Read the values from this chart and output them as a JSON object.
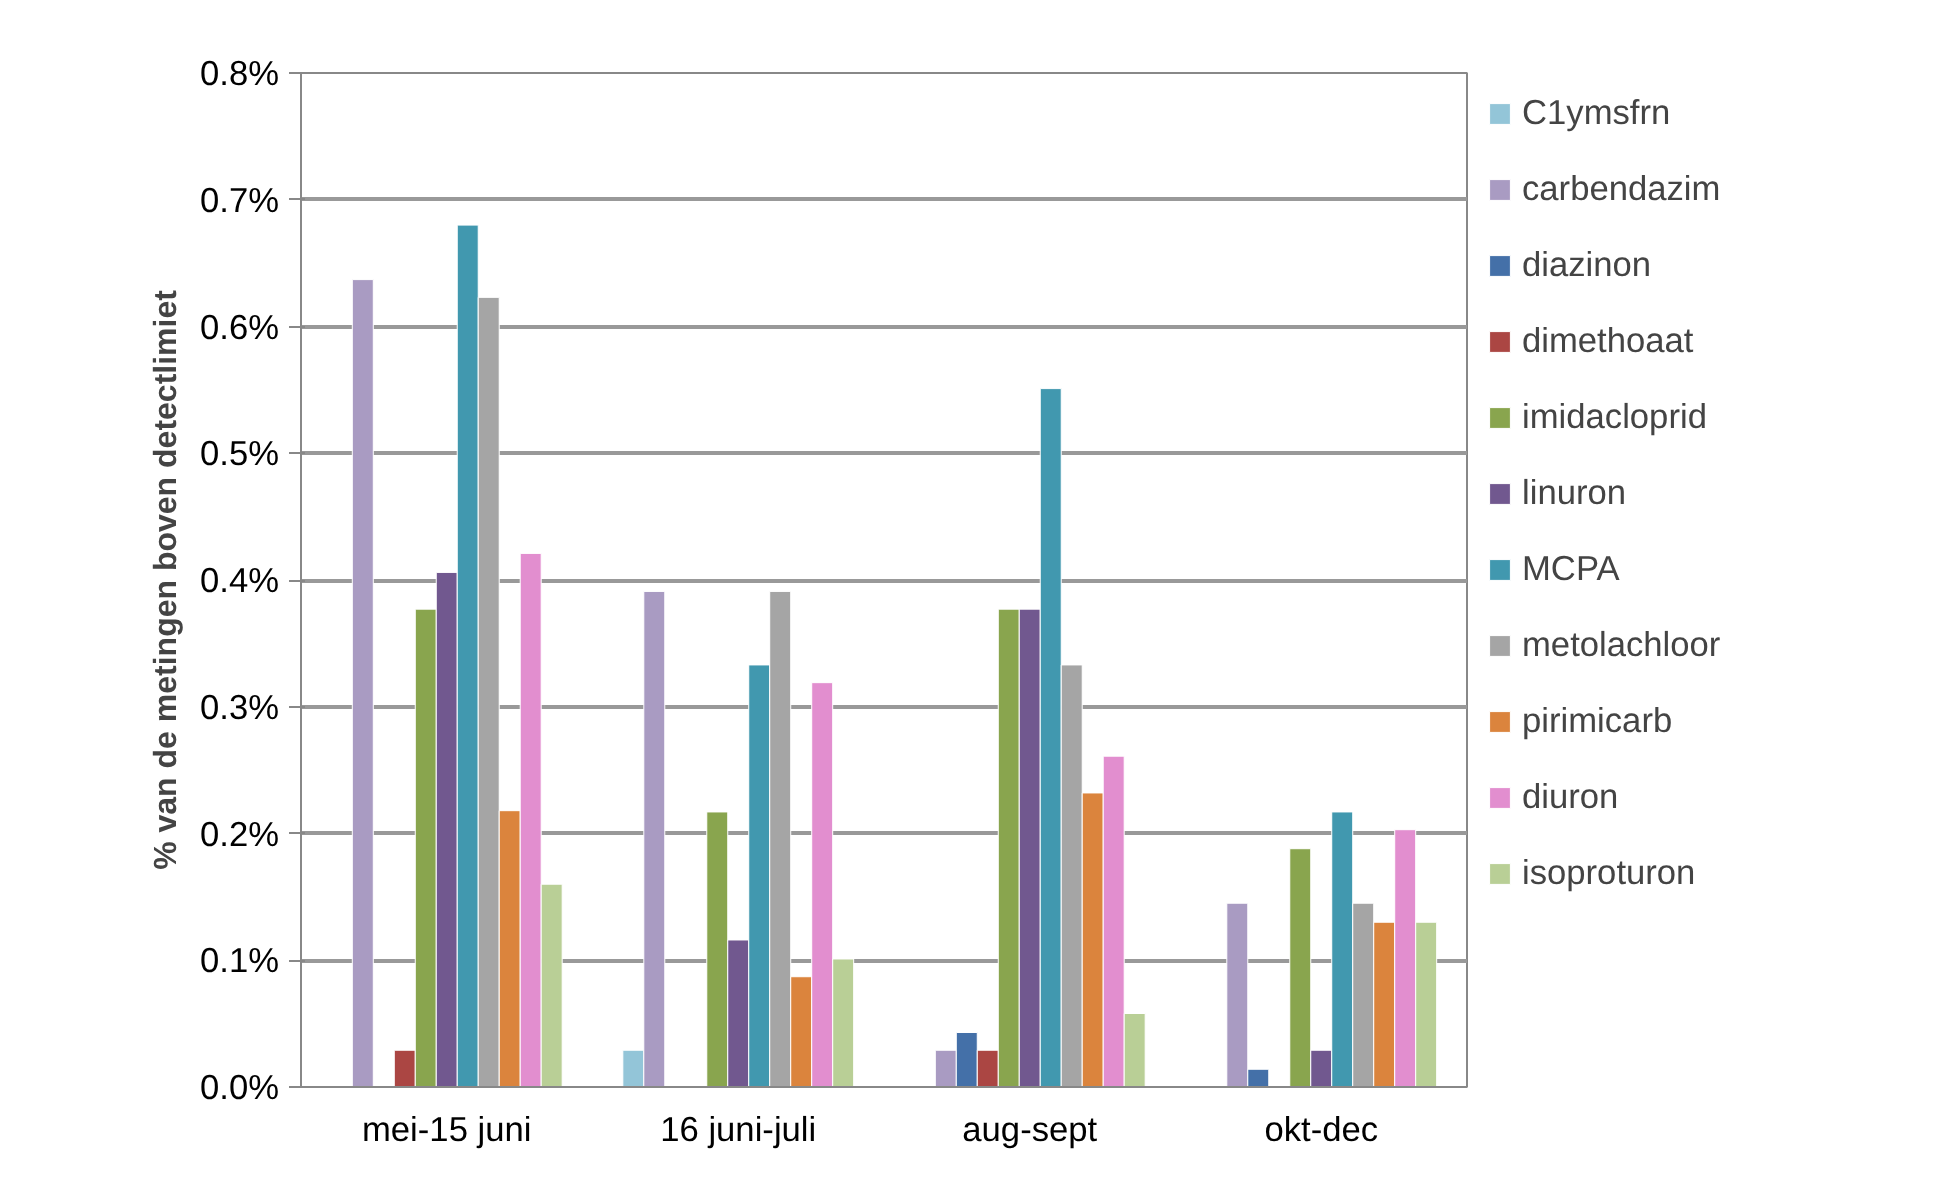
{
  "chart_data": {
    "type": "bar",
    "ylabel": "% van de metingen boven detectlimiet",
    "categories": [
      "mei-15 juni",
      "16 juni-juli",
      "aug-sept",
      "okt-dec"
    ],
    "ylim": [
      0,
      0.8
    ],
    "yticks": [
      {
        "value": 0,
        "label": "0.0%"
      },
      {
        "value": 0.1,
        "label": "0.1%"
      },
      {
        "value": 0.2,
        "label": "0.2%"
      },
      {
        "value": 0.3,
        "label": "0.3%"
      },
      {
        "value": 0.4,
        "label": "0.4%"
      },
      {
        "value": 0.5,
        "label": "0.5%"
      },
      {
        "value": 0.6,
        "label": "0.6%"
      },
      {
        "value": 0.7,
        "label": "0.7%"
      },
      {
        "value": 0.8,
        "label": "0.8%"
      }
    ],
    "grid": "y",
    "legend": "right",
    "series": [
      {
        "name": "C1ymsfrn",
        "color": "#93c5d8",
        "values": [
          null,
          0.029,
          null,
          null
        ]
      },
      {
        "name": "carbendazim",
        "color": "#a99bc2",
        "values": [
          0.637,
          0.391,
          0.029,
          0.145
        ]
      },
      {
        "name": "diazinon",
        "color": "#4470a8",
        "values": [
          null,
          null,
          0.043,
          0.014
        ]
      },
      {
        "name": "dimethoaat",
        "color": "#ab4643",
        "values": [
          0.029,
          null,
          0.029,
          null
        ]
      },
      {
        "name": "imidacloprid",
        "color": "#89a54e",
        "values": [
          0.377,
          0.217,
          0.377,
          0.188
        ]
      },
      {
        "name": "linuron",
        "color": "#71588f",
        "values": [
          0.406,
          0.116,
          0.377,
          0.029
        ]
      },
      {
        "name": "MCPA",
        "color": "#4198af",
        "values": [
          0.68,
          0.333,
          0.551,
          0.217
        ]
      },
      {
        "name": "metolachloor",
        "color": "#a5a5a5",
        "values": [
          0.623,
          0.391,
          0.333,
          0.145
        ]
      },
      {
        "name": "pirimicarb",
        "color": "#db843d",
        "values": [
          0.218,
          0.087,
          0.232,
          0.13
        ]
      },
      {
        "name": "diuron",
        "color": "#e28ecf",
        "values": [
          0.421,
          0.319,
          0.261,
          0.203
        ]
      },
      {
        "name": "isoproturon",
        "color": "#b9cf96",
        "values": [
          0.16,
          0.101,
          0.058,
          0.13
        ]
      }
    ]
  }
}
